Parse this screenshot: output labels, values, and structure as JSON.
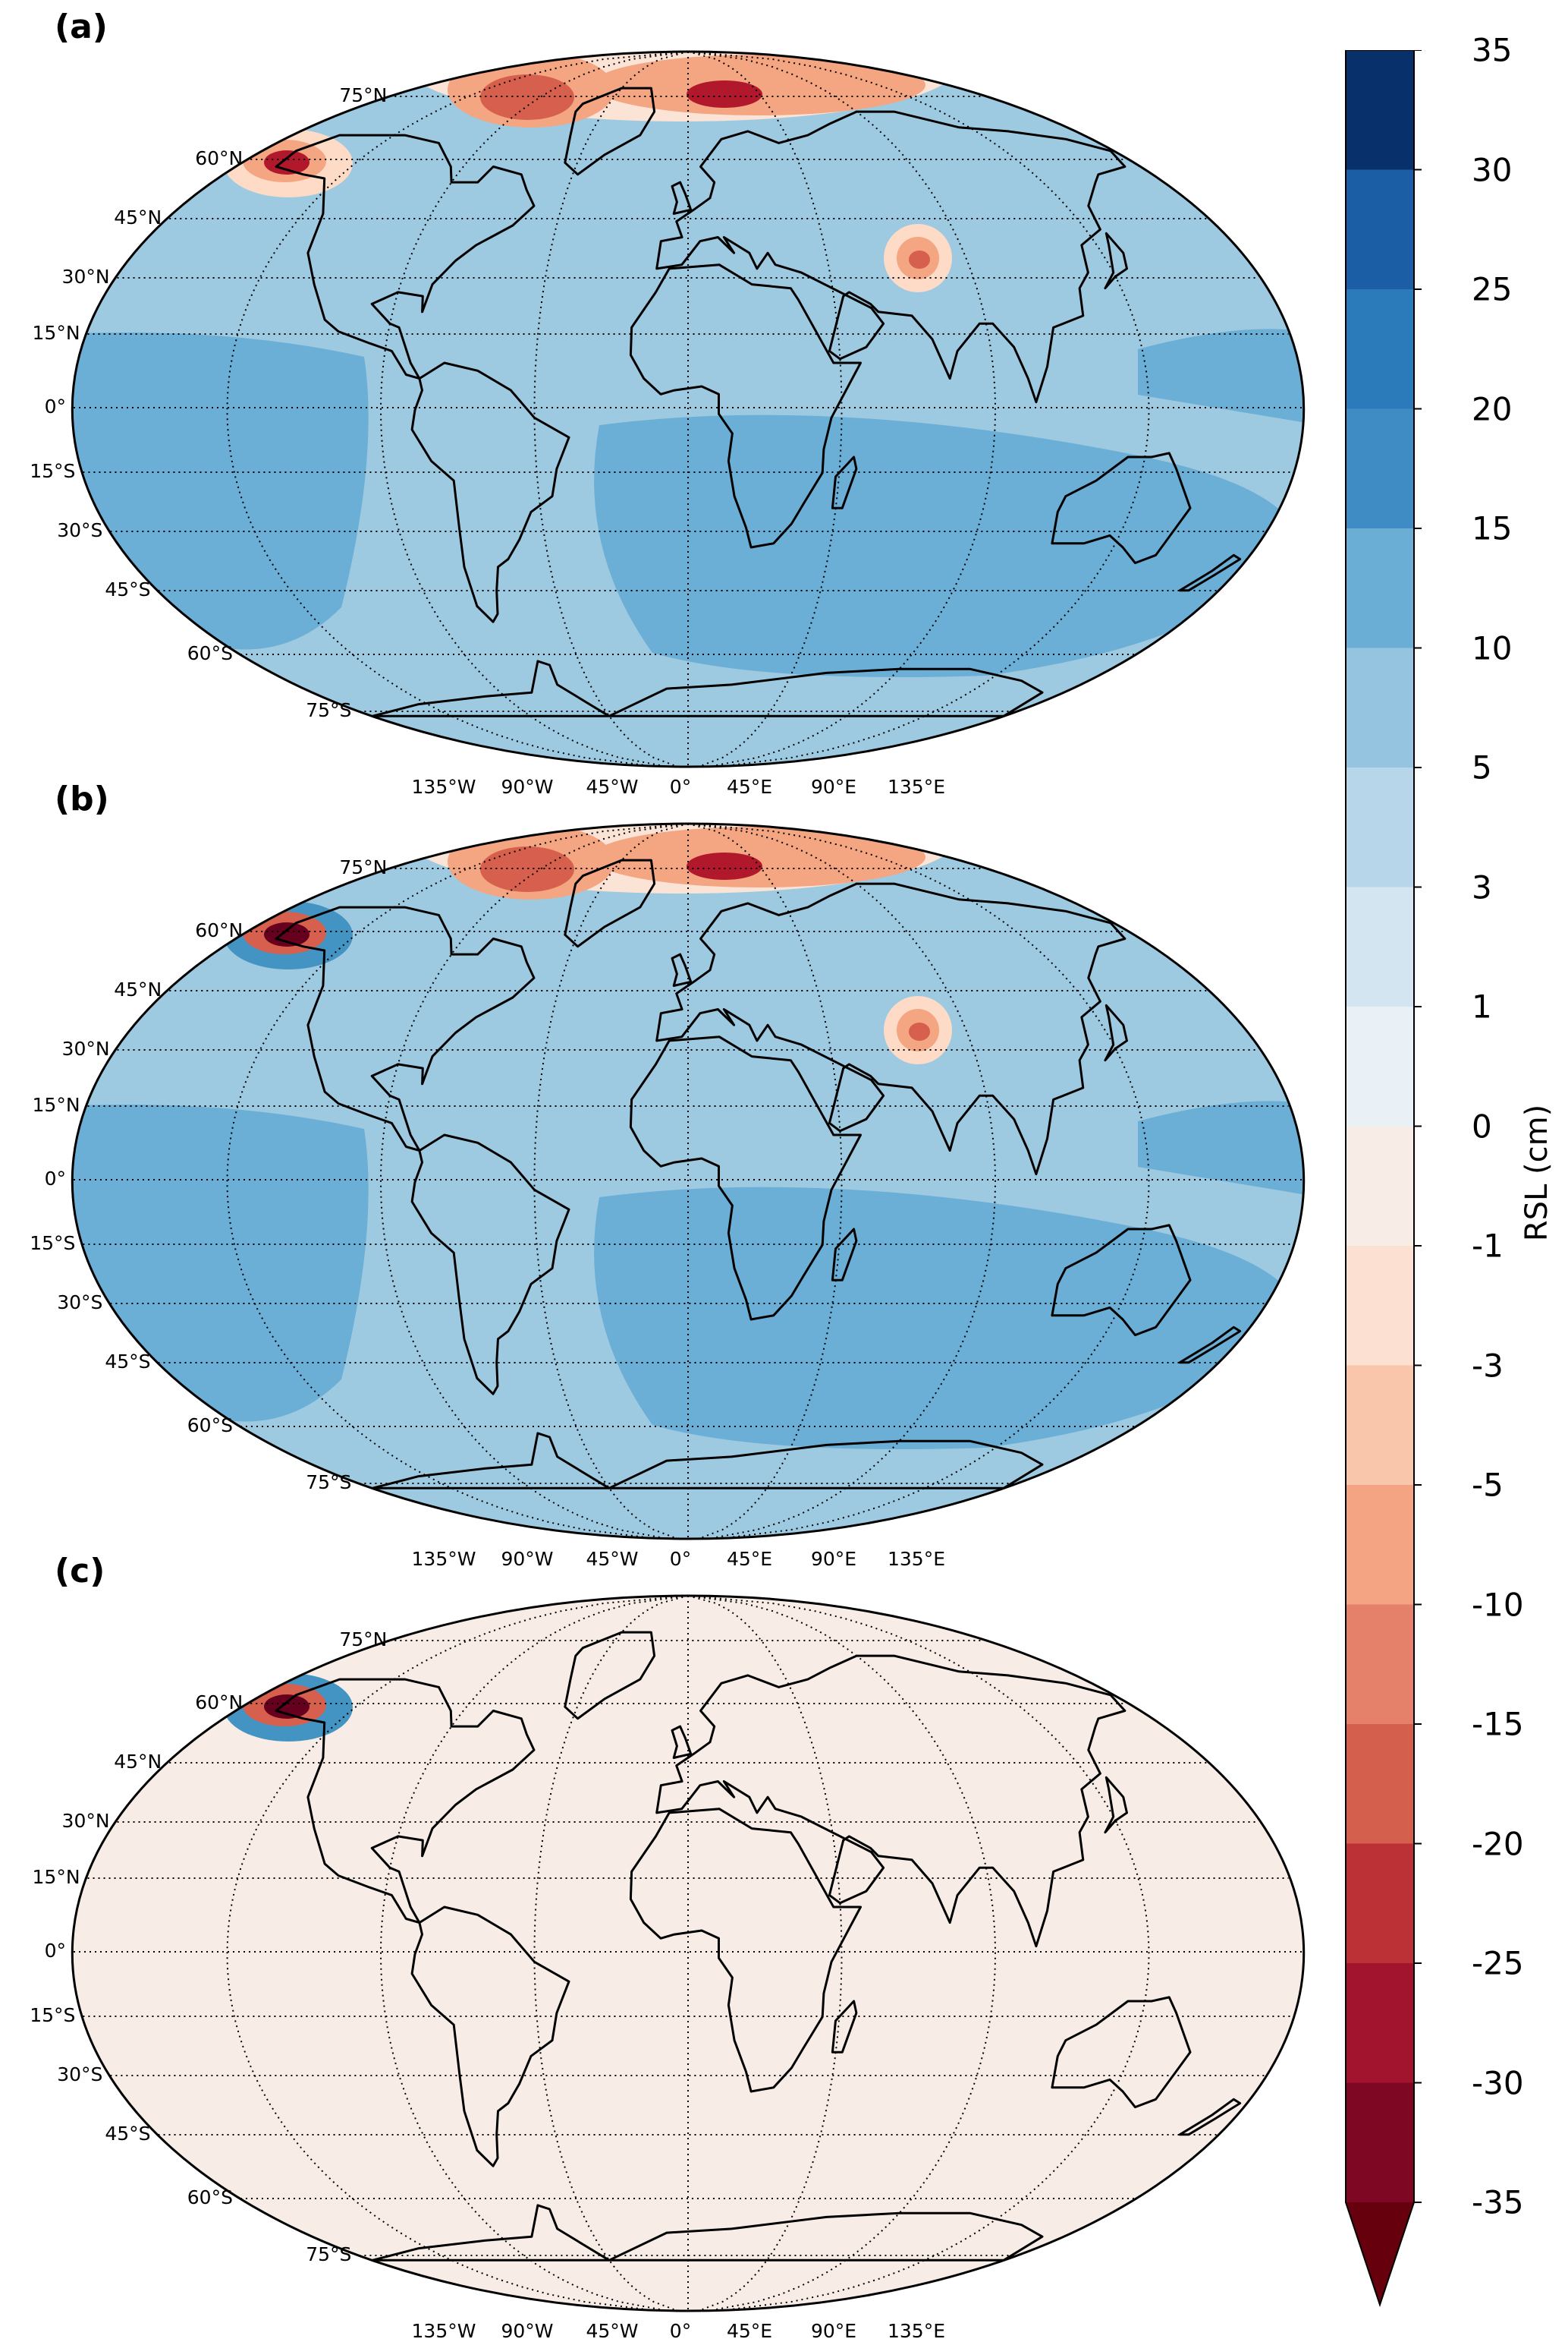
{
  "panels": [
    {
      "label": "(a)",
      "lat_labels": [
        "75°N",
        "60°N",
        "45°N",
        "30°N",
        "15°N",
        "0°",
        "15°S",
        "30°S",
        "45°S",
        "60°S",
        "75°S"
      ],
      "lon_labels": [
        "135°W",
        "90°W",
        "45°W",
        "0°",
        "45°E",
        "90°E",
        "135°E"
      ],
      "background_color": "#9ecae1",
      "zones": [
        {
          "type": "band",
          "colors": [
            "#fbe3d6",
            "#f4a582",
            "#d6604d",
            "#b2182b"
          ]
        },
        {
          "type": "ocean-south",
          "color": "#6baed6"
        },
        {
          "type": "blob-alaska",
          "colors": [
            "#fddbc7",
            "#f4a582",
            "#b2182b"
          ]
        },
        {
          "type": "blob-tibet",
          "colors": [
            "#fddbc7",
            "#f4a582",
            "#d6604d"
          ]
        }
      ]
    },
    {
      "label": "(b)",
      "lat_labels": [
        "75°N",
        "60°N",
        "45°N",
        "30°N",
        "15°N",
        "0°",
        "15°S",
        "30°S",
        "45°S",
        "60°S",
        "75°S"
      ],
      "lon_labels": [
        "135°W",
        "90°W",
        "45°W",
        "0°",
        "45°E",
        "90°E",
        "135°E"
      ],
      "background_color": "#9ecae1",
      "zones": [
        {
          "type": "band",
          "colors": [
            "#fbe3d6",
            "#f4a582",
            "#d6604d",
            "#b2182b"
          ]
        },
        {
          "type": "ocean-south",
          "color": "#6baed6"
        },
        {
          "type": "blob-alaska",
          "colors": [
            "#4393c3",
            "#d6604d",
            "#67001f"
          ]
        },
        {
          "type": "blob-tibet",
          "colors": [
            "#fddbc7",
            "#f4a582",
            "#d6604d"
          ]
        }
      ]
    },
    {
      "label": "(c)",
      "lat_labels": [
        "75°N",
        "60°N",
        "45°N",
        "30°N",
        "15°N",
        "0°",
        "15°S",
        "30°S",
        "45°S",
        "60°S",
        "75°S"
      ],
      "lon_labels": [
        "135°W",
        "90°W",
        "45°W",
        "0°",
        "45°E",
        "90°E",
        "135°E"
      ],
      "background_color": "#f7ede6",
      "zones": [
        {
          "type": "blob-alaska",
          "colors": [
            "#4393c3",
            "#d6604d",
            "#67001f"
          ]
        }
      ]
    }
  ],
  "colorbar": {
    "label": "RSL (cm)",
    "ticks": [
      "35",
      "30",
      "25",
      "20",
      "15",
      "10",
      "5",
      "3",
      "1",
      "0",
      "-1",
      "-3",
      "-5",
      "-10",
      "-15",
      "-20",
      "-25",
      "-30",
      "-35"
    ],
    "colors": [
      "#08306b",
      "#1c5ea6",
      "#2b7bba",
      "#3f8cc5",
      "#6aaed6",
      "#94c4df",
      "#b7d6ea",
      "#d3e5f0",
      "#e9f1f6",
      "#f7ede6",
      "#fce0d2",
      "#f9c5ab",
      "#f4a482",
      "#e5816a",
      "#d45f4d",
      "#bb3135",
      "#a2142d",
      "#7e0823"
    ],
    "extend_color": "#67000d"
  }
}
